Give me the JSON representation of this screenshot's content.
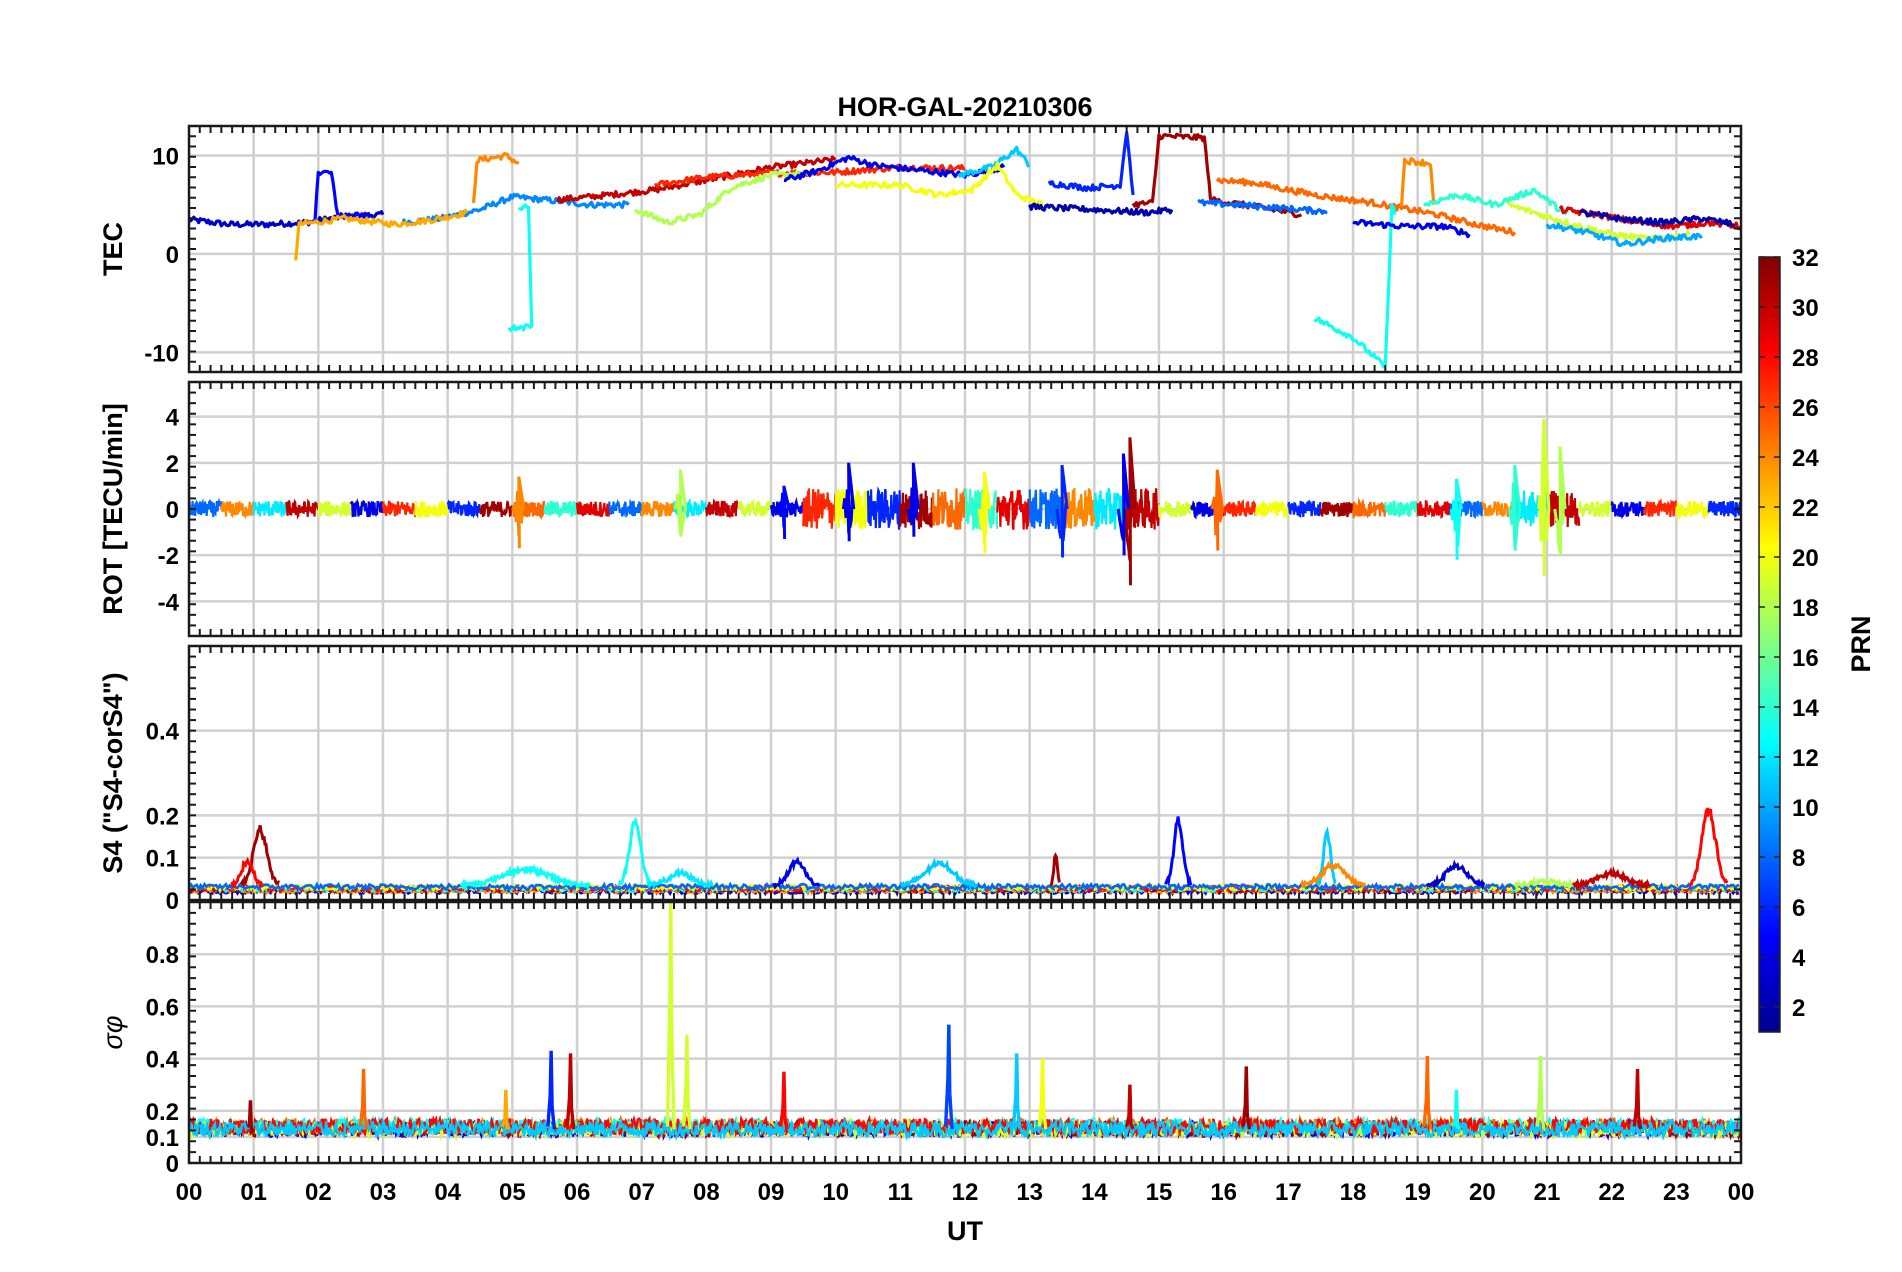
{
  "chart_data": {
    "type": "line",
    "title": "HOR-GAL-20210306",
    "xlabel": "UT",
    "x_ticks": [
      "00",
      "01",
      "02",
      "03",
      "04",
      "05",
      "06",
      "07",
      "08",
      "09",
      "10",
      "11",
      "12",
      "13",
      "14",
      "15",
      "16",
      "17",
      "18",
      "19",
      "20",
      "21",
      "22",
      "23",
      "00"
    ],
    "xlim_hours": [
      0,
      24
    ],
    "colorbar": {
      "label": "PRN",
      "range": [
        1,
        32
      ],
      "ticks": [
        "2",
        "4",
        "6",
        "8",
        "10",
        "12",
        "14",
        "16",
        "18",
        "20",
        "22",
        "24",
        "26",
        "28",
        "30",
        "32"
      ],
      "colormap": "jet",
      "colors": [
        "#00008f",
        "#0000ff",
        "#0080ff",
        "#00ffff",
        "#80ff80",
        "#ffff00",
        "#ff8000",
        "#ff0000",
        "#800000"
      ]
    },
    "panels": [
      {
        "id": "tec",
        "ylabel": "TEC",
        "ylim": [
          -12,
          13
        ],
        "yticks": [
          -10,
          0,
          10
        ],
        "ytick_labels": [
          "-10",
          "0",
          "10"
        ],
        "series": [
          {
            "prn": 3,
            "points": [
              [
                0.0,
                3.5
              ],
              [
                0.6,
                3.0
              ],
              [
                1.2,
                3.0
              ],
              [
                1.8,
                3.2
              ],
              [
                2.4,
                3.8
              ],
              [
                3.0,
                4.0
              ]
            ]
          },
          {
            "prn": 5,
            "points": [
              [
                1.95,
                3.5
              ],
              [
                2.0,
                8.4
              ],
              [
                2.2,
                8.2
              ],
              [
                2.3,
                4.0
              ],
              [
                2.8,
                3.8
              ]
            ]
          },
          {
            "prn": 9,
            "points": [
              [
                3.3,
                3.2
              ],
              [
                3.9,
                3.6
              ],
              [
                4.5,
                4.5
              ],
              [
                5.0,
                5.8
              ],
              [
                5.5,
                5.5
              ],
              [
                6.2,
                5.0
              ],
              [
                6.8,
                5.0
              ]
            ]
          },
          {
            "prn": 23,
            "points": [
              [
                1.65,
                -0.5
              ],
              [
                1.7,
                3.0
              ],
              [
                2.4,
                3.6
              ],
              [
                3.2,
                3.0
              ],
              [
                3.8,
                3.5
              ],
              [
                4.3,
                4.2
              ]
            ]
          },
          {
            "prn": 24,
            "points": [
              [
                4.4,
                5.0
              ],
              [
                4.45,
                9.5
              ],
              [
                4.9,
                10.0
              ],
              [
                5.1,
                9.2
              ]
            ]
          },
          {
            "prn": 13,
            "points": [
              [
                5.1,
                4.5
              ],
              [
                5.25,
                4.8
              ],
              [
                5.3,
                -7.5
              ],
              [
                4.95,
                -7.5
              ]
            ]
          },
          {
            "prn": 30,
            "points": [
              [
                5.7,
                5.5
              ],
              [
                6.5,
                6.0
              ],
              [
                7.2,
                6.5
              ],
              [
                8.0,
                7.5
              ],
              [
                9.0,
                8.8
              ],
              [
                10.0,
                9.6
              ]
            ]
          },
          {
            "prn": 27,
            "points": [
              [
                7.2,
                7.0
              ],
              [
                8.0,
                7.8
              ],
              [
                9.0,
                8.2
              ],
              [
                10.0,
                8.3
              ],
              [
                11.0,
                8.8
              ],
              [
                12.0,
                8.7
              ]
            ]
          },
          {
            "prn": 18,
            "points": [
              [
                6.9,
                4.5
              ],
              [
                7.4,
                3.2
              ],
              [
                7.9,
                4.0
              ],
              [
                8.4,
                6.8
              ],
              [
                9.0,
                8.0
              ],
              [
                9.6,
                8.2
              ]
            ]
          },
          {
            "prn": 4,
            "points": [
              [
                9.2,
                7.5
              ],
              [
                9.7,
                8.4
              ],
              [
                10.2,
                9.8
              ],
              [
                10.6,
                9.0
              ],
              [
                11.3,
                8.5
              ],
              [
                12.0,
                8.0
              ],
              [
                12.6,
                8.8
              ]
            ]
          },
          {
            "prn": 11,
            "points": [
              [
                11.9,
                8.0
              ],
              [
                12.4,
                8.8
              ],
              [
                12.8,
                10.6
              ],
              [
                13.0,
                9.0
              ]
            ]
          },
          {
            "prn": 20,
            "points": [
              [
                10.0,
                7.0
              ],
              [
                11.0,
                7.0
              ],
              [
                11.6,
                6.0
              ],
              [
                12.1,
                6.5
              ],
              [
                12.5,
                9.0
              ],
              [
                12.8,
                6.0
              ],
              [
                13.2,
                5.0
              ]
            ]
          },
          {
            "prn": 6,
            "points": [
              [
                13.3,
                7.2
              ],
              [
                13.9,
                6.7
              ],
              [
                14.4,
                7.0
              ],
              [
                14.5,
                12.5
              ],
              [
                14.6,
                6.0
              ]
            ]
          },
          {
            "prn": 2,
            "points": [
              [
                13.0,
                4.8
              ],
              [
                14.0,
                4.5
              ],
              [
                14.8,
                4.2
              ],
              [
                15.2,
                4.5
              ]
            ]
          },
          {
            "prn": 31,
            "points": [
              [
                14.6,
                5.0
              ],
              [
                14.9,
                5.2
              ],
              [
                15.0,
                12.0
              ],
              [
                15.7,
                11.8
              ],
              [
                15.8,
                5.5
              ],
              [
                16.5,
                4.8
              ],
              [
                17.2,
                4.0
              ]
            ]
          },
          {
            "prn": 25,
            "points": [
              [
                15.9,
                7.5
              ],
              [
                16.5,
                7.2
              ],
              [
                17.0,
                6.5
              ],
              [
                17.6,
                5.8
              ],
              [
                18.3,
                5.2
              ],
              [
                18.8,
                4.6
              ],
              [
                19.3,
                4.0
              ],
              [
                19.9,
                3.0
              ],
              [
                20.5,
                2.2
              ]
            ]
          },
          {
            "prn": 24,
            "points": [
              [
                18.75,
                5.0
              ],
              [
                18.8,
                9.5
              ],
              [
                19.2,
                9.2
              ],
              [
                19.25,
                5.0
              ]
            ]
          },
          {
            "prn": 8,
            "points": [
              [
                15.6,
                5.2
              ],
              [
                16.2,
                5.0
              ],
              [
                17.0,
                4.6
              ],
              [
                17.6,
                4.3
              ]
            ]
          },
          {
            "prn": 13,
            "points": [
              [
                17.4,
                -6.5
              ],
              [
                18.0,
                -8.5
              ],
              [
                18.5,
                -11.5
              ],
              [
                18.6,
                5.0
              ],
              [
                18.65,
                4.0
              ]
            ]
          },
          {
            "prn": 4,
            "points": [
              [
                18.0,
                3.2
              ],
              [
                18.8,
                2.8
              ],
              [
                19.4,
                2.8
              ],
              [
                19.8,
                2.0
              ]
            ]
          },
          {
            "prn": 14,
            "points": [
              [
                19.1,
                5.0
              ],
              [
                19.6,
                6.0
              ],
              [
                20.2,
                5.0
              ],
              [
                20.8,
                6.5
              ],
              [
                21.3,
                4.0
              ]
            ]
          },
          {
            "prn": 19,
            "points": [
              [
                20.4,
                5.0
              ],
              [
                20.9,
                4.0
              ],
              [
                21.4,
                3.0
              ],
              [
                22.0,
                2.0
              ],
              [
                22.6,
                1.5
              ],
              [
                23.2,
                2.0
              ]
            ]
          },
          {
            "prn": 10,
            "points": [
              [
                21.0,
                3.0
              ],
              [
                21.6,
                2.2
              ],
              [
                22.2,
                1.0
              ],
              [
                22.8,
                1.6
              ],
              [
                23.4,
                1.8
              ]
            ]
          },
          {
            "prn": 29,
            "points": [
              [
                21.2,
                4.5
              ],
              [
                21.8,
                4.0
              ],
              [
                22.4,
                3.2
              ],
              [
                23.0,
                2.8
              ],
              [
                23.5,
                3.2
              ],
              [
                24.0,
                2.8
              ]
            ]
          },
          {
            "prn": 2,
            "points": [
              [
                21.5,
                4.2
              ],
              [
                22.2,
                3.5
              ],
              [
                22.8,
                3.2
              ],
              [
                23.4,
                3.6
              ],
              [
                23.9,
                3.0
              ]
            ]
          }
        ]
      },
      {
        "id": "rot",
        "ylabel": "ROT [TECU/min]",
        "ylim": [
          -5.5,
          5.5
        ],
        "yticks": [
          -4,
          -2,
          0,
          2,
          4
        ],
        "ytick_labels": [
          "-4",
          "-2",
          "0",
          "2",
          "4"
        ],
        "spikes": [
          {
            "t": 14.55,
            "min": -3.3,
            "max": 3.1,
            "prn": 31
          },
          {
            "t": 14.45,
            "min": -2.0,
            "max": 2.4,
            "prn": 4
          },
          {
            "t": 20.95,
            "min": -2.9,
            "max": 3.9,
            "prn": 19
          },
          {
            "t": 21.2,
            "min": -2.0,
            "max": 2.7,
            "prn": 18
          },
          {
            "t": 20.5,
            "min": -1.8,
            "max": 1.9,
            "prn": 14
          },
          {
            "t": 19.6,
            "min": -2.2,
            "max": 1.3,
            "prn": 13
          },
          {
            "t": 10.2,
            "min": -1.4,
            "max": 2.0,
            "prn": 4
          },
          {
            "t": 11.2,
            "min": -1.2,
            "max": 2.0,
            "prn": 4
          },
          {
            "t": 13.5,
            "min": -2.1,
            "max": 1.9,
            "prn": 6
          },
          {
            "t": 7.6,
            "min": -1.2,
            "max": 1.7,
            "prn": 18
          },
          {
            "t": 12.3,
            "min": -1.9,
            "max": 1.6,
            "prn": 20
          },
          {
            "t": 5.1,
            "min": -1.7,
            "max": 1.4,
            "prn": 24
          },
          {
            "t": 15.9,
            "min": -1.8,
            "max": 1.7,
            "prn": 25
          },
          {
            "t": 9.2,
            "min": -1.3,
            "max": 1.0,
            "prn": 5
          }
        ]
      },
      {
        "id": "s4",
        "ylabel": "S4 (\"S4-corS4\")",
        "ylim": [
          0,
          0.6
        ],
        "yticks": [
          0,
          0.1,
          0.2,
          0.4
        ],
        "ytick_labels": [
          "0",
          "0.1",
          "0.2",
          "0.4"
        ],
        "peaks": [
          {
            "t": 1.1,
            "peak": 0.17,
            "width": 0.6,
            "prn": 31
          },
          {
            "t": 0.9,
            "peak": 0.09,
            "width": 0.5,
            "prn": 28
          },
          {
            "t": 5.2,
            "peak": 0.07,
            "width": 2.0,
            "prn": 13
          },
          {
            "t": 6.9,
            "peak": 0.19,
            "width": 0.5,
            "prn": 13
          },
          {
            "t": 7.6,
            "peak": 0.06,
            "width": 1.0,
            "prn": 12
          },
          {
            "t": 9.4,
            "peak": 0.09,
            "width": 0.7,
            "prn": 4
          },
          {
            "t": 11.6,
            "peak": 0.085,
            "width": 1.2,
            "prn": 11
          },
          {
            "t": 13.4,
            "peak": 0.11,
            "width": 0.15,
            "prn": 31
          },
          {
            "t": 15.3,
            "peak": 0.19,
            "width": 0.4,
            "prn": 5
          },
          {
            "t": 17.6,
            "peak": 0.16,
            "width": 0.3,
            "prn": 11
          },
          {
            "t": 17.7,
            "peak": 0.08,
            "width": 1.0,
            "prn": 24
          },
          {
            "t": 19.6,
            "peak": 0.08,
            "width": 0.9,
            "prn": 3
          },
          {
            "t": 21.0,
            "peak": 0.04,
            "width": 1.0,
            "prn": 18
          },
          {
            "t": 23.5,
            "peak": 0.22,
            "width": 0.6,
            "prn": 28
          },
          {
            "t": 22.0,
            "peak": 0.06,
            "width": 1.2,
            "prn": 30
          }
        ]
      },
      {
        "id": "sigma_phi",
        "ylabel": "σφ",
        "ylim": [
          0,
          1.0
        ],
        "yticks": [
          0,
          0.1,
          0.2,
          0.4,
          0.6,
          0.8
        ],
        "ytick_labels": [
          "0",
          "0.1",
          "0.2",
          "0.4",
          "0.6",
          "0.8"
        ],
        "peaks": [
          {
            "t": 7.45,
            "peak": 1.0,
            "prn": 19
          },
          {
            "t": 7.7,
            "peak": 0.49,
            "prn": 19
          },
          {
            "t": 11.75,
            "peak": 0.53,
            "prn": 7
          },
          {
            "t": 12.8,
            "peak": 0.42,
            "prn": 11
          },
          {
            "t": 13.2,
            "peak": 0.4,
            "prn": 20
          },
          {
            "t": 5.6,
            "peak": 0.43,
            "prn": 6
          },
          {
            "t": 5.9,
            "peak": 0.42,
            "prn": 30
          },
          {
            "t": 2.7,
            "peak": 0.36,
            "prn": 25
          },
          {
            "t": 19.15,
            "peak": 0.41,
            "prn": 25
          },
          {
            "t": 16.35,
            "peak": 0.37,
            "prn": 31
          },
          {
            "t": 22.4,
            "peak": 0.36,
            "prn": 30
          },
          {
            "t": 20.9,
            "peak": 0.41,
            "prn": 18
          },
          {
            "t": 19.6,
            "peak": 0.28,
            "prn": 13
          },
          {
            "t": 14.55,
            "peak": 0.3,
            "prn": 30
          },
          {
            "t": 0.95,
            "peak": 0.24,
            "prn": 31
          },
          {
            "t": 9.2,
            "peak": 0.35,
            "prn": 28
          },
          {
            "t": 4.9,
            "peak": 0.28,
            "prn": 23
          }
        ]
      }
    ]
  }
}
